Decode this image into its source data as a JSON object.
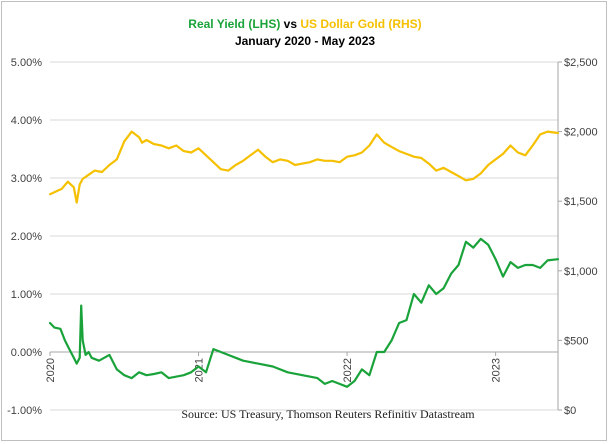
{
  "chart_data": {
    "type": "line",
    "title": {
      "lhs_label": "Real Yield (LHS)",
      "connector": " vs ",
      "rhs_label": "US Dollar Gold (RHS)"
    },
    "subtitle": "January 2020 - May 2023",
    "source": "Source: US Treasury, Thomson Reuters Refinitiv Datastream",
    "x_axis": {
      "range": [
        2020.0,
        2023.42
      ],
      "ticks": [
        {
          "label": "2020",
          "value": 2020.0
        },
        {
          "label": "2021",
          "value": 2021.0
        },
        {
          "label": "2022",
          "value": 2022.0
        },
        {
          "label": "2023",
          "value": 2023.0
        }
      ]
    },
    "left_axis": {
      "range": [
        -1.0,
        5.0
      ],
      "tick_values": [
        -1,
        0,
        1,
        2,
        3,
        4,
        5
      ],
      "tick_labels": [
        "-1.00%",
        "0.00%",
        "1.00%",
        "2.00%",
        "3.00%",
        "4.00%",
        "5.00%"
      ]
    },
    "right_axis": {
      "range": [
        0,
        2500
      ],
      "tick_values": [
        0,
        500,
        1000,
        1500,
        2000,
        2500
      ],
      "tick_labels": [
        "$0",
        "$500",
        "$1,000",
        "$1,500",
        "$2,000",
        "$2,500"
      ]
    },
    "grid": "horizontal",
    "colors": {
      "real_yield": "#1aa33a",
      "gold": "#f5c000",
      "grid": "#d9d9d9",
      "axis": "#a6a6a6"
    },
    "series": [
      {
        "name": "Real Yield (LHS)",
        "axis": "left",
        "color": "#1aa33a",
        "x": [
          2020.0,
          2020.03,
          2020.07,
          2020.1,
          2020.13,
          2020.16,
          2020.18,
          2020.2,
          2020.21,
          2020.22,
          2020.24,
          2020.26,
          2020.28,
          2020.33,
          2020.4,
          2020.45,
          2020.5,
          2020.55,
          2020.6,
          2020.65,
          2020.7,
          2020.75,
          2020.8,
          2020.9,
          2020.95,
          2021.0,
          2021.05,
          2021.1,
          2021.15,
          2021.2,
          2021.25,
          2021.3,
          2021.4,
          2021.5,
          2021.6,
          2021.7,
          2021.8,
          2021.85,
          2021.9,
          2021.95,
          2022.0,
          2022.05,
          2022.1,
          2022.15,
          2022.2,
          2022.25,
          2022.3,
          2022.35,
          2022.4,
          2022.45,
          2022.5,
          2022.55,
          2022.6,
          2022.65,
          2022.7,
          2022.75,
          2022.8,
          2022.85,
          2022.9,
          2022.95,
          2023.0,
          2023.05,
          2023.1,
          2023.15,
          2023.2,
          2023.25,
          2023.3,
          2023.35,
          2023.42
        ],
        "y": [
          0.5,
          0.42,
          0.4,
          0.2,
          0.05,
          -0.1,
          -0.2,
          -0.1,
          0.8,
          0.2,
          -0.05,
          0.0,
          -0.1,
          -0.15,
          -0.05,
          -0.3,
          -0.4,
          -0.45,
          -0.35,
          -0.4,
          -0.38,
          -0.35,
          -0.45,
          -0.4,
          -0.35,
          -0.25,
          -0.35,
          0.05,
          0.0,
          -0.05,
          -0.1,
          -0.15,
          -0.2,
          -0.25,
          -0.35,
          -0.4,
          -0.45,
          -0.55,
          -0.5,
          -0.55,
          -0.6,
          -0.5,
          -0.3,
          -0.4,
          0.0,
          0.0,
          0.2,
          0.5,
          0.55,
          1.0,
          0.85,
          1.15,
          1.0,
          1.1,
          1.35,
          1.5,
          1.9,
          1.8,
          1.95,
          1.85,
          1.6,
          1.3,
          1.55,
          1.45,
          1.5,
          1.5,
          1.45,
          1.58,
          1.6
        ]
      },
      {
        "name": "US Dollar Gold (RHS)",
        "axis": "right",
        "color": "#f5c000",
        "x": [
          2020.0,
          2020.04,
          2020.08,
          2020.12,
          2020.16,
          2020.18,
          2020.2,
          2020.22,
          2020.26,
          2020.3,
          2020.35,
          2020.4,
          2020.45,
          2020.5,
          2020.55,
          2020.6,
          2020.62,
          2020.65,
          2020.7,
          2020.75,
          2020.8,
          2020.85,
          2020.9,
          2020.95,
          2021.0,
          2021.05,
          2021.1,
          2021.15,
          2021.2,
          2021.25,
          2021.3,
          2021.35,
          2021.4,
          2021.45,
          2021.5,
          2021.55,
          2021.6,
          2021.65,
          2021.7,
          2021.75,
          2021.8,
          2021.85,
          2021.9,
          2021.95,
          2022.0,
          2022.05,
          2022.1,
          2022.15,
          2022.2,
          2022.25,
          2022.3,
          2022.35,
          2022.4,
          2022.45,
          2022.5,
          2022.55,
          2022.6,
          2022.65,
          2022.7,
          2022.75,
          2022.8,
          2022.85,
          2022.9,
          2022.95,
          2023.0,
          2023.05,
          2023.1,
          2023.15,
          2023.2,
          2023.25,
          2023.3,
          2023.35,
          2023.42
        ],
        "y": [
          1550,
          1570,
          1590,
          1640,
          1600,
          1490,
          1620,
          1660,
          1690,
          1720,
          1710,
          1760,
          1800,
          1930,
          2000,
          1960,
          1920,
          1940,
          1910,
          1900,
          1880,
          1900,
          1860,
          1850,
          1880,
          1830,
          1780,
          1730,
          1720,
          1760,
          1790,
          1830,
          1870,
          1820,
          1780,
          1800,
          1790,
          1760,
          1770,
          1780,
          1800,
          1790,
          1790,
          1780,
          1820,
          1830,
          1850,
          1900,
          1980,
          1920,
          1890,
          1860,
          1840,
          1820,
          1810,
          1770,
          1720,
          1740,
          1710,
          1680,
          1650,
          1660,
          1700,
          1760,
          1800,
          1840,
          1900,
          1850,
          1830,
          1900,
          1980,
          2000,
          1990
        ]
      }
    ]
  }
}
